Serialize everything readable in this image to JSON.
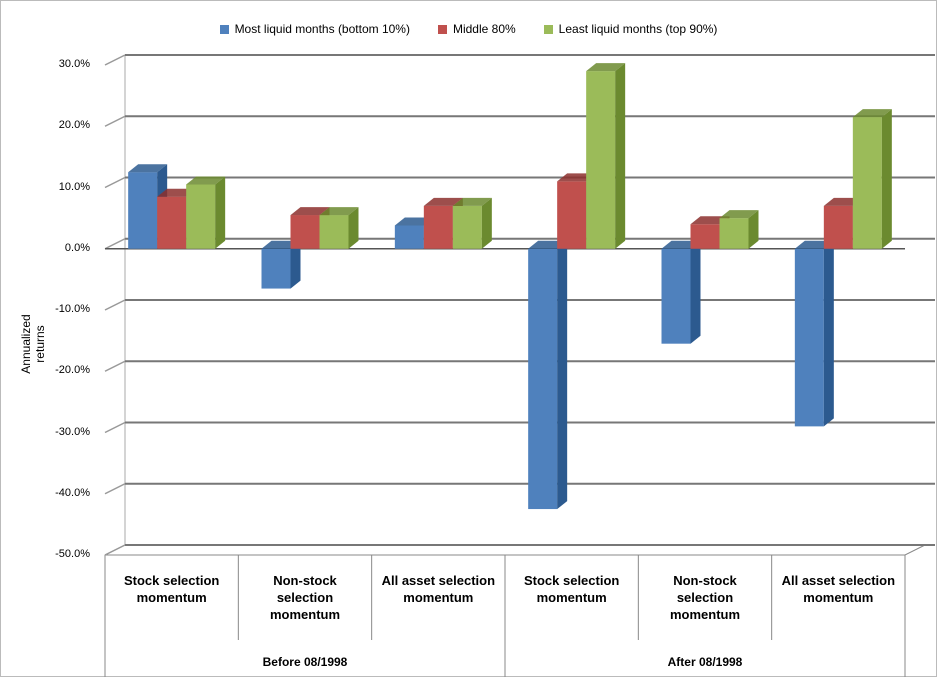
{
  "chart_data": {
    "type": "bar3d",
    "y_label": "Annualized returns",
    "categories": [
      "Stock selection momentum",
      "Non-stock selection momentum",
      "All asset selection momentum",
      "Stock selection momentum",
      "Non-stock selection momentum",
      "All asset selection momentum"
    ],
    "groups": [
      {
        "label": "Before 08/1998",
        "span": 3
      },
      {
        "label": "After 08/1998",
        "span": 3
      }
    ],
    "series": [
      {
        "name": "Most liquid months (bottom 10%)",
        "color": "#4f81bd",
        "side": "#2c5a8f",
        "values": [
          12.5,
          -6.5,
          3.8,
          -42.5,
          -15.5,
          -29
        ]
      },
      {
        "name": "Middle 80%",
        "color": "#c0504d",
        "side": "#8c2f2d",
        "values": [
          8.5,
          5.5,
          7.0,
          11.0,
          4.0,
          7.0
        ]
      },
      {
        "name": "Least liquid months (top 90%)",
        "color": "#9bbb59",
        "side": "#6b8a2f",
        "values": [
          10.5,
          5.5,
          7.0,
          29.0,
          5.0,
          21.5
        ]
      }
    ],
    "ylim": [
      -50,
      30
    ],
    "yticks": [
      {
        "value": -50,
        "label": "-50.0%"
      },
      {
        "value": -40,
        "label": "-40.0%"
      },
      {
        "value": -30,
        "label": "-30.0%"
      },
      {
        "value": -20,
        "label": "-20.0%"
      },
      {
        "value": -10,
        "label": "-10.0%"
      },
      {
        "value": 0,
        "label": "0.0%"
      },
      {
        "value": 10,
        "label": "10.0%"
      },
      {
        "value": 20,
        "label": "20.0%"
      },
      {
        "value": 30,
        "label": "30.0%"
      }
    ],
    "grid": true
  }
}
